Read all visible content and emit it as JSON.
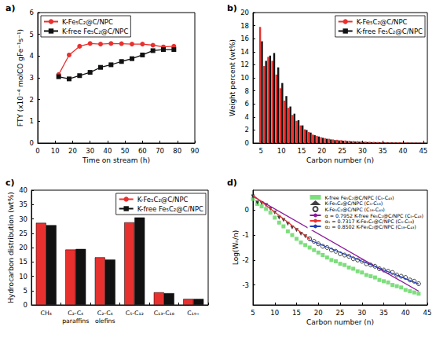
{
  "chart_data": [
    {
      "title": "a)",
      "type": "line",
      "x_label": "Time on stream (h)",
      "y_label": "FTY (x10⁻⁴ molCO gFe⁻¹s⁻¹)",
      "xlim": [
        0,
        90
      ],
      "xticks": [
        0,
        10,
        20,
        30,
        40,
        50,
        60,
        70,
        80,
        90
      ],
      "ylim": [
        0,
        6
      ],
      "yticks": [
        0,
        1,
        2,
        3,
        4,
        5,
        6
      ],
      "grid": false,
      "legend": "upper left",
      "x": [
        12,
        18,
        24,
        30,
        36,
        42,
        48,
        54,
        60,
        66,
        72,
        78
      ],
      "series": [
        {
          "name": "K-Fe₅C₂@C/NPC",
          "color": "#e8312f",
          "marker": "circle",
          "values": [
            3.15,
            4.05,
            4.45,
            4.58,
            4.55,
            4.58,
            4.57,
            4.55,
            4.55,
            4.5,
            4.42,
            4.45
          ]
        },
        {
          "name": "K-free Fe₅C₂@C/NPC",
          "color": "#111111",
          "marker": "square",
          "values": [
            3.05,
            2.95,
            3.1,
            3.25,
            3.48,
            3.6,
            3.75,
            3.88,
            4.05,
            4.25,
            4.3,
            4.3
          ]
        }
      ]
    },
    {
      "title": "b)",
      "type": "bar",
      "x_label": "Carbon number (n)",
      "y_label": "Weight percent (wt%)",
      "xlim": [
        3,
        46
      ],
      "xticks": [
        5,
        10,
        15,
        20,
        25,
        30,
        35,
        40,
        45
      ],
      "ylim": [
        0,
        20
      ],
      "yticks": [
        0,
        2,
        4,
        6,
        8,
        10,
        12,
        14,
        16,
        18,
        20
      ],
      "grid": false,
      "legend": "upper right",
      "x": [
        5,
        6,
        7,
        8,
        9,
        10,
        11,
        12,
        13,
        14,
        15,
        16,
        17,
        18,
        19,
        20,
        21,
        22,
        23,
        24,
        25,
        26,
        27,
        28,
        29,
        30,
        31,
        32,
        33,
        34,
        35,
        36,
        37,
        38,
        39,
        40,
        41,
        42,
        43,
        44,
        45
      ],
      "series": [
        {
          "name": "K-Fe₅C₂@C/NPC",
          "color": "#e8312f",
          "values": [
            17.8,
            11.8,
            13.2,
            12.6,
            10.5,
            8.4,
            6.5,
            5.4,
            4.3,
            3.4,
            2.7,
            2.1,
            1.7,
            1.3,
            1.1,
            0.9,
            0.75,
            0.65,
            0.55,
            0.5,
            0.45,
            0.4,
            0.35,
            0.3,
            0.28,
            0.25,
            0.22,
            0.2,
            0.18,
            0.16,
            0.14,
            0.12,
            0.11,
            0.1,
            0.09,
            0.08,
            0.07,
            0.06,
            0.05,
            0.05,
            0.04
          ]
        },
        {
          "name": "K-free Fe₅C₂@C/NPC",
          "color": "#111111",
          "values": [
            15.6,
            12.6,
            13.4,
            13.8,
            11.6,
            9.2,
            7.2,
            5.6,
            4.5,
            3.5,
            2.7,
            2.0,
            1.6,
            1.2,
            1.0,
            0.8,
            0.65,
            0.55,
            0.45,
            0.4,
            0.35,
            0.3,
            0.25,
            0.22,
            0.2,
            0.17,
            0.15,
            0.13,
            0.11,
            0.1,
            0.09,
            0.08,
            0.07,
            0.06,
            0.05,
            0.04,
            0.04,
            0.03,
            0.03,
            0.02,
            0.02
          ]
        }
      ]
    },
    {
      "title": "c)",
      "type": "bar",
      "y_label": "Hydrocarbon distribution (wt%)",
      "categories": [
        "CH₄",
        "C₂-C₄\nparaffins",
        "C₂-C₄\nolefins",
        "C₅-C₁₂",
        "C₁₃-C₁₈",
        "C₁₉₊"
      ],
      "ylim": [
        0,
        40
      ],
      "yticks": [
        0,
        5,
        10,
        15,
        20,
        25,
        30,
        35,
        40
      ],
      "grid": false,
      "legend": "upper right",
      "series": [
        {
          "name": "K-Fe₅C₂@C/NPC",
          "color": "#e8312f",
          "values": [
            28.6,
            19.3,
            16.6,
            28.8,
            4.4,
            2.1
          ]
        },
        {
          "name": "K-free Fe₅C₂@C/NPC",
          "color": "#111111",
          "values": [
            27.8,
            19.5,
            15.8,
            30.5,
            4.1,
            2.1
          ]
        }
      ]
    },
    {
      "title": "d)",
      "type": "scatter",
      "x_label": "Carbon number (n)",
      "y_label": "Log(Wₙ/n)",
      "xlim": [
        5,
        45
      ],
      "xticks": [
        5,
        10,
        15,
        20,
        25,
        30,
        35,
        40,
        45
      ],
      "ylim": [
        -3.8,
        0.8
      ],
      "yticks": [
        -3,
        -2,
        -1,
        0
      ],
      "grid": false,
      "legend": "upper right",
      "series": [
        {
          "name": "K-free Fe₅C₂@C/NPC (C₅-C₄₃)",
          "type": "scatter",
          "marker": "square",
          "color": "#5cd65c",
          "x": [
            5,
            6,
            7,
            8,
            9,
            10,
            11,
            12,
            13,
            14,
            15,
            16,
            17,
            18,
            19,
            20,
            21,
            22,
            23,
            24,
            25,
            26,
            27,
            28,
            29,
            30,
            31,
            32,
            33,
            34,
            35,
            36,
            37,
            38,
            39,
            40,
            41,
            42,
            43
          ],
          "values": [
            0.45,
            0.25,
            0.15,
            0.05,
            -0.1,
            -0.3,
            -0.5,
            -0.65,
            -0.85,
            -1.0,
            -1.15,
            -1.3,
            -1.4,
            -1.5,
            -1.6,
            -1.7,
            -1.8,
            -1.9,
            -2.0,
            -2.05,
            -2.15,
            -2.2,
            -2.3,
            -2.35,
            -2.45,
            -2.5,
            -2.6,
            -2.65,
            -2.7,
            -2.8,
            -2.85,
            -2.9,
            -3.0,
            -3.05,
            -3.1,
            -3.2,
            -3.25,
            -3.3,
            -3.35
          ]
        },
        {
          "name": "K-Fe₅C₂@C/NPC (C₅-C₁₈)",
          "type": "scatter",
          "marker": "triangle-down",
          "color": "#111111",
          "x": [
            5,
            6,
            7,
            8,
            9,
            10,
            11,
            12,
            13,
            14,
            15,
            16,
            17,
            18
          ],
          "values": [
            0.55,
            0.3,
            0.28,
            0.2,
            0.05,
            -0.1,
            -0.3,
            -0.4,
            -0.55,
            -0.7,
            -0.8,
            -0.95,
            -1.05,
            -1.15
          ]
        },
        {
          "name": "K-Fe₅C₂@C/NPC (C₁₈-C₄₃)",
          "type": "scatter",
          "marker": "circle-open",
          "color": "#111111",
          "x": [
            18,
            19,
            20,
            21,
            22,
            23,
            24,
            25,
            26,
            27,
            28,
            29,
            30,
            31,
            32,
            33,
            34,
            35,
            36,
            37,
            38,
            39,
            40,
            41,
            42,
            43
          ],
          "values": [
            -1.15,
            -1.25,
            -1.35,
            -1.45,
            -1.5,
            -1.6,
            -1.65,
            -1.75,
            -1.8,
            -1.85,
            -1.95,
            -2.0,
            -2.05,
            -2.15,
            -2.2,
            -2.25,
            -2.35,
            -2.4,
            -2.45,
            -2.5,
            -2.6,
            -2.65,
            -2.7,
            -2.8,
            -2.85,
            -2.95
          ]
        },
        {
          "name": "α = 0.7952 K-free Fe₅C₂@C/NPC (C₅-C₄₃)",
          "type": "line",
          "color": "#8b1a9b",
          "x": [
            5,
            43
          ],
          "values": [
            0.55,
            -3.25
          ]
        },
        {
          "name": "α₁ = 0.7317 K-Fe₅C₂@C/NPC (C₅-C₁₈)",
          "type": "line",
          "color": "#e8312f",
          "x": [
            5,
            18
          ],
          "values": [
            0.6,
            -1.16
          ]
        },
        {
          "name": "α₂ = 0.8502 K-Fe₅C₂@C/NPC (C₁₈-C₄₃)",
          "type": "line",
          "color": "#1f3fbf",
          "x": [
            18,
            43
          ],
          "values": [
            -1.2,
            -2.96
          ]
        }
      ]
    }
  ]
}
